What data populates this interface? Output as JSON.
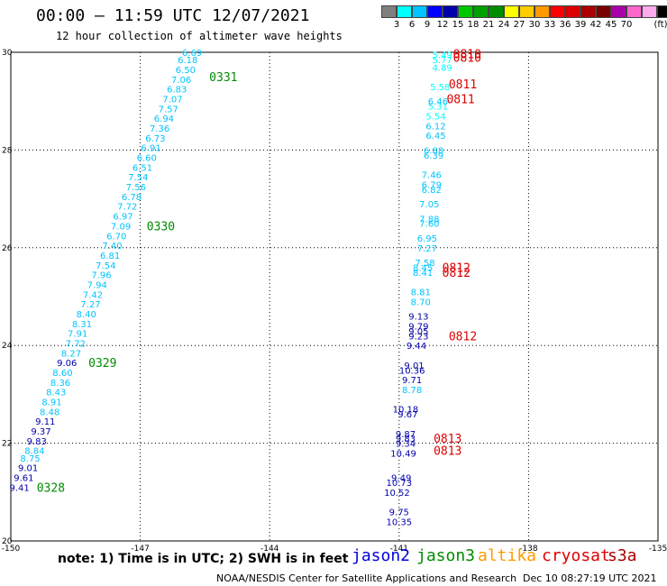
{
  "header": {
    "title": "00:00 – 11:59 UTC 12/07/2021",
    "subtitle": "12 hour collection of altimeter wave heights"
  },
  "colorbar": {
    "colors": [
      "#7f7f7f",
      "#00ffff",
      "#00c4ff",
      "#0000ff",
      "#0000aa",
      "#00c800",
      "#00a000",
      "#008c00",
      "#ffff00",
      "#ffcc00",
      "#ff9900",
      "#ff0000",
      "#dd0000",
      "#aa0000",
      "#780000",
      "#aa00aa",
      "#ff66cc",
      "#ffaaee",
      "#000000"
    ],
    "labels": [
      "3",
      "6",
      "9",
      "12",
      "15",
      "18",
      "21",
      "24",
      "27",
      "30",
      "33",
      "36",
      "39",
      "42",
      "45",
      "70"
    ],
    "unit": "(ft)"
  },
  "chart_data": {
    "type": "scatter",
    "xlim": [
      -150,
      -135
    ],
    "ylim": [
      20,
      30
    ],
    "x_ticks": [
      "-150",
      "-147",
      "-144",
      "-141",
      "-138",
      "-135"
    ],
    "y_ticks": [
      "20",
      "22",
      "24",
      "26",
      "28",
      "30"
    ],
    "grid": true,
    "series": [
      {
        "name": "jason3",
        "color": "#008c00",
        "points": [
          {
            "x": -149.8,
            "y": 21.1,
            "v": 9.41,
            "c": "#0000aa"
          },
          {
            "x": -149.7,
            "y": 21.3,
            "v": 9.61,
            "c": "#0000aa"
          },
          {
            "x": -149.6,
            "y": 21.5,
            "v": 9.01,
            "c": "#0000aa"
          },
          {
            "x": -149.55,
            "y": 21.7,
            "v": 8.75,
            "c": "#00c4ff"
          },
          {
            "x": -149.45,
            "y": 21.85,
            "v": 8.84,
            "c": "#00c4ff"
          },
          {
            "x": -149.4,
            "y": 22.05,
            "v": 9.83,
            "c": "#0000aa"
          },
          {
            "x": -149.3,
            "y": 22.25,
            "v": 9.37,
            "c": "#0000aa"
          },
          {
            "x": -149.2,
            "y": 22.45,
            "v": 9.11,
            "c": "#0000aa"
          },
          {
            "x": -149.1,
            "y": 22.65,
            "v": 8.48,
            "c": "#00c4ff"
          },
          {
            "x": -149.05,
            "y": 22.85,
            "v": 8.91,
            "c": "#00c4ff"
          },
          {
            "x": -148.95,
            "y": 23.05,
            "v": 8.43,
            "c": "#00c4ff"
          },
          {
            "x": -148.85,
            "y": 23.25,
            "v": 8.36,
            "c": "#00c4ff"
          },
          {
            "x": -148.8,
            "y": 23.45,
            "v": 8.6,
            "c": "#00c4ff"
          },
          {
            "x": -148.7,
            "y": 23.65,
            "v": 9.06,
            "c": "#0000aa"
          },
          {
            "x": -148.6,
            "y": 23.85,
            "v": 8.27,
            "c": "#00c4ff"
          },
          {
            "x": -148.5,
            "y": 24.05,
            "v": 7.72,
            "c": "#00c4ff"
          },
          {
            "x": -148.45,
            "y": 24.25,
            "v": 7.91,
            "c": "#00c4ff"
          },
          {
            "x": -148.35,
            "y": 24.45,
            "v": 8.31,
            "c": "#00c4ff"
          },
          {
            "x": -148.25,
            "y": 24.65,
            "v": 8.4,
            "c": "#00c4ff"
          },
          {
            "x": -148.15,
            "y": 24.85,
            "v": 7.27,
            "c": "#00c4ff"
          },
          {
            "x": -148.1,
            "y": 25.05,
            "v": 7.42,
            "c": "#00c4ff"
          },
          {
            "x": -148.0,
            "y": 25.25,
            "v": 7.94,
            "c": "#00c4ff"
          },
          {
            "x": -147.9,
            "y": 25.45,
            "v": 7.96,
            "c": "#00c4ff"
          },
          {
            "x": -147.8,
            "y": 25.65,
            "v": 7.54,
            "c": "#00c4ff"
          },
          {
            "x": -147.7,
            "y": 25.85,
            "v": 6.81,
            "c": "#00c4ff"
          },
          {
            "x": -147.65,
            "y": 26.05,
            "v": 7.4,
            "c": "#00c4ff"
          },
          {
            "x": -147.55,
            "y": 26.25,
            "v": 6.7,
            "c": "#00c4ff"
          },
          {
            "x": -147.45,
            "y": 26.45,
            "v": 7.09,
            "c": "#00c4ff"
          },
          {
            "x": -147.4,
            "y": 26.65,
            "v": 6.97,
            "c": "#00c4ff"
          },
          {
            "x": -147.3,
            "y": 26.85,
            "v": 7.72,
            "c": "#00c4ff"
          },
          {
            "x": -147.2,
            "y": 27.05,
            "v": 6.78,
            "c": "#00c4ff"
          },
          {
            "x": -147.1,
            "y": 27.25,
            "v": 7.56,
            "c": "#00c4ff"
          },
          {
            "x": -147.05,
            "y": 27.45,
            "v": 7.54,
            "c": "#00c4ff"
          },
          {
            "x": -146.95,
            "y": 27.65,
            "v": 6.51,
            "c": "#00c4ff"
          },
          {
            "x": -146.85,
            "y": 27.85,
            "v": 6.6,
            "c": "#00c4ff"
          },
          {
            "x": -146.75,
            "y": 28.05,
            "v": 6.91,
            "c": "#00c4ff"
          },
          {
            "x": -146.65,
            "y": 28.25,
            "v": 6.73,
            "c": "#00c4ff"
          },
          {
            "x": -146.55,
            "y": 28.45,
            "v": 7.36,
            "c": "#00c4ff"
          },
          {
            "x": -146.45,
            "y": 28.65,
            "v": 6.94,
            "c": "#00c4ff"
          },
          {
            "x": -146.35,
            "y": 28.85,
            "v": 7.57,
            "c": "#00c4ff"
          },
          {
            "x": -146.25,
            "y": 29.05,
            "v": 7.07,
            "c": "#00c4ff"
          },
          {
            "x": -146.15,
            "y": 29.25,
            "v": 6.83,
            "c": "#00c4ff"
          },
          {
            "x": -146.05,
            "y": 29.45,
            "v": 7.06,
            "c": "#00c4ff"
          },
          {
            "x": -145.95,
            "y": 29.65,
            "v": 6.5,
            "c": "#00c4ff"
          },
          {
            "x": -145.9,
            "y": 29.85,
            "v": 6.18,
            "c": "#00c4ff"
          },
          {
            "x": -145.8,
            "y": 30.0,
            "v": 6.69,
            "c": "#00c4ff"
          }
        ]
      },
      {
        "name": "jason2",
        "color": "#0000ff",
        "points": [
          {
            "x": -141.0,
            "y": 20.4,
            "v": 10.35,
            "c": "#0000aa"
          },
          {
            "x": -141.0,
            "y": 20.6,
            "v": 9.75,
            "c": "#0000aa"
          },
          {
            "x": -141.05,
            "y": 21.0,
            "v": 10.52,
            "c": "#0000aa"
          },
          {
            "x": -141.0,
            "y": 21.2,
            "v": 10.73,
            "c": "#0000aa"
          },
          {
            "x": -140.95,
            "y": 21.3,
            "v": 9.49,
            "c": "#0000aa"
          },
          {
            "x": -140.9,
            "y": 21.8,
            "v": 10.49,
            "c": "#0000aa"
          },
          {
            "x": -140.85,
            "y": 22.0,
            "v": 9.34,
            "c": "#0000aa"
          },
          {
            "x": -140.85,
            "y": 22.1,
            "v": 9.83,
            "c": "#0000aa"
          },
          {
            "x": -140.85,
            "y": 22.2,
            "v": 9.87,
            "c": "#0000aa"
          },
          {
            "x": -140.8,
            "y": 22.6,
            "v": 9.67,
            "c": "#0000aa"
          },
          {
            "x": -140.85,
            "y": 22.7,
            "v": 10.18,
            "c": "#0000aa"
          },
          {
            "x": -140.7,
            "y": 23.1,
            "v": 8.78,
            "c": "#00c4ff"
          },
          {
            "x": -140.7,
            "y": 23.3,
            "v": 9.71,
            "c": "#0000aa"
          },
          {
            "x": -140.7,
            "y": 23.5,
            "v": 10.36,
            "c": "#0000aa"
          },
          {
            "x": -140.65,
            "y": 23.6,
            "v": 9.01,
            "c": "#0000aa"
          },
          {
            "x": -140.6,
            "y": 24.0,
            "v": 9.44,
            "c": "#0000aa"
          },
          {
            "x": -140.55,
            "y": 24.2,
            "v": 9.23,
            "c": "#0000aa"
          },
          {
            "x": -140.55,
            "y": 24.3,
            "v": 9.05,
            "c": "#0000aa"
          },
          {
            "x": -140.55,
            "y": 24.4,
            "v": 9.79,
            "c": "#0000aa"
          },
          {
            "x": -140.55,
            "y": 24.6,
            "v": 9.13,
            "c": "#0000aa"
          },
          {
            "x": -140.5,
            "y": 24.9,
            "v": 8.7,
            "c": "#00c4ff"
          },
          {
            "x": -140.5,
            "y": 25.1,
            "v": 8.81,
            "c": "#00c4ff"
          },
          {
            "x": -140.45,
            "y": 25.5,
            "v": 8.41,
            "c": "#00c4ff"
          },
          {
            "x": -140.45,
            "y": 25.6,
            "v": 8.45,
            "c": "#00c4ff"
          },
          {
            "x": -140.4,
            "y": 25.7,
            "v": 7.58,
            "c": "#00c4ff"
          },
          {
            "x": -140.35,
            "y": 26.0,
            "v": 7.27,
            "c": "#00c4ff"
          },
          {
            "x": -140.35,
            "y": 26.2,
            "v": 6.95,
            "c": "#00c4ff"
          },
          {
            "x": -140.3,
            "y": 26.5,
            "v": 7.6,
            "c": "#00c4ff"
          },
          {
            "x": -140.3,
            "y": 26.6,
            "v": 7.88,
            "c": "#00c4ff"
          },
          {
            "x": -140.3,
            "y": 26.9,
            "v": 7.05,
            "c": "#00c4ff"
          },
          {
            "x": -140.25,
            "y": 27.2,
            "v": 6.82,
            "c": "#00c4ff"
          },
          {
            "x": -140.25,
            "y": 27.3,
            "v": 6.79,
            "c": "#00c4ff"
          },
          {
            "x": -140.25,
            "y": 27.5,
            "v": 7.46,
            "c": "#00c4ff"
          },
          {
            "x": -140.2,
            "y": 27.9,
            "v": 6.39,
            "c": "#00c4ff"
          },
          {
            "x": -140.2,
            "y": 28.0,
            "v": 6.88,
            "c": "#00c4ff"
          },
          {
            "x": -140.15,
            "y": 28.3,
            "v": 6.45,
            "c": "#00c4ff"
          },
          {
            "x": -140.15,
            "y": 28.5,
            "v": 6.12,
            "c": "#00c4ff"
          },
          {
            "x": -140.15,
            "y": 28.7,
            "v": 5.54,
            "c": "#00ffff"
          },
          {
            "x": -140.1,
            "y": 28.9,
            "v": 5.31,
            "c": "#00ffff"
          },
          {
            "x": -140.1,
            "y": 29.0,
            "v": 6.46,
            "c": "#00c4ff"
          },
          {
            "x": -140.05,
            "y": 29.3,
            "v": 5.58,
            "c": "#00ffff"
          },
          {
            "x": -140.0,
            "y": 29.7,
            "v": 4.89,
            "c": "#00ffff"
          },
          {
            "x": -140.0,
            "y": 29.85,
            "v": 5.77,
            "c": "#00ffff"
          },
          {
            "x": -140.0,
            "y": 29.95,
            "v": 5.49,
            "c": "#00ffff"
          }
        ]
      }
    ],
    "time_labels": [
      {
        "text": "0328",
        "x": -149.4,
        "y": 21.1,
        "color": "#008c00"
      },
      {
        "text": "0329",
        "x": -148.2,
        "y": 23.65,
        "color": "#008c00"
      },
      {
        "text": "0330",
        "x": -146.85,
        "y": 26.45,
        "color": "#008c00"
      },
      {
        "text": "0331",
        "x": -145.4,
        "y": 29.5,
        "color": "#008c00"
      },
      {
        "text": "0813",
        "x": -140.2,
        "y": 21.85,
        "color": "#dd0000"
      },
      {
        "text": "0813",
        "x": -140.2,
        "y": 22.1,
        "color": "#dd0000"
      },
      {
        "text": "0812",
        "x": -139.85,
        "y": 24.2,
        "color": "#dd0000"
      },
      {
        "text": "0812",
        "x": -140.0,
        "y": 25.5,
        "color": "#dd0000"
      },
      {
        "text": "0812",
        "x": -140.0,
        "y": 25.6,
        "color": "#dd0000"
      },
      {
        "text": "0811",
        "x": -139.9,
        "y": 29.05,
        "color": "#dd0000"
      },
      {
        "text": "0811",
        "x": -139.85,
        "y": 29.35,
        "color": "#dd0000"
      },
      {
        "text": "0810",
        "x": -139.75,
        "y": 29.9,
        "color": "#dd0000"
      },
      {
        "text": "0810",
        "x": -139.75,
        "y": 29.97,
        "color": "#dd0000"
      }
    ]
  },
  "note": "note:  1) Time is in UTC;  2) SWH is in feet",
  "legend": {
    "jason2": "jason2",
    "jason3": "jason3",
    "altika": "altika",
    "cryosat": "cryosat",
    "s3a": "s3a"
  },
  "footer_left": "NOAA/NESDIS Center for Satellite Applications and Research",
  "footer_right": "Dec 10 08:27:19 UTC 2021"
}
